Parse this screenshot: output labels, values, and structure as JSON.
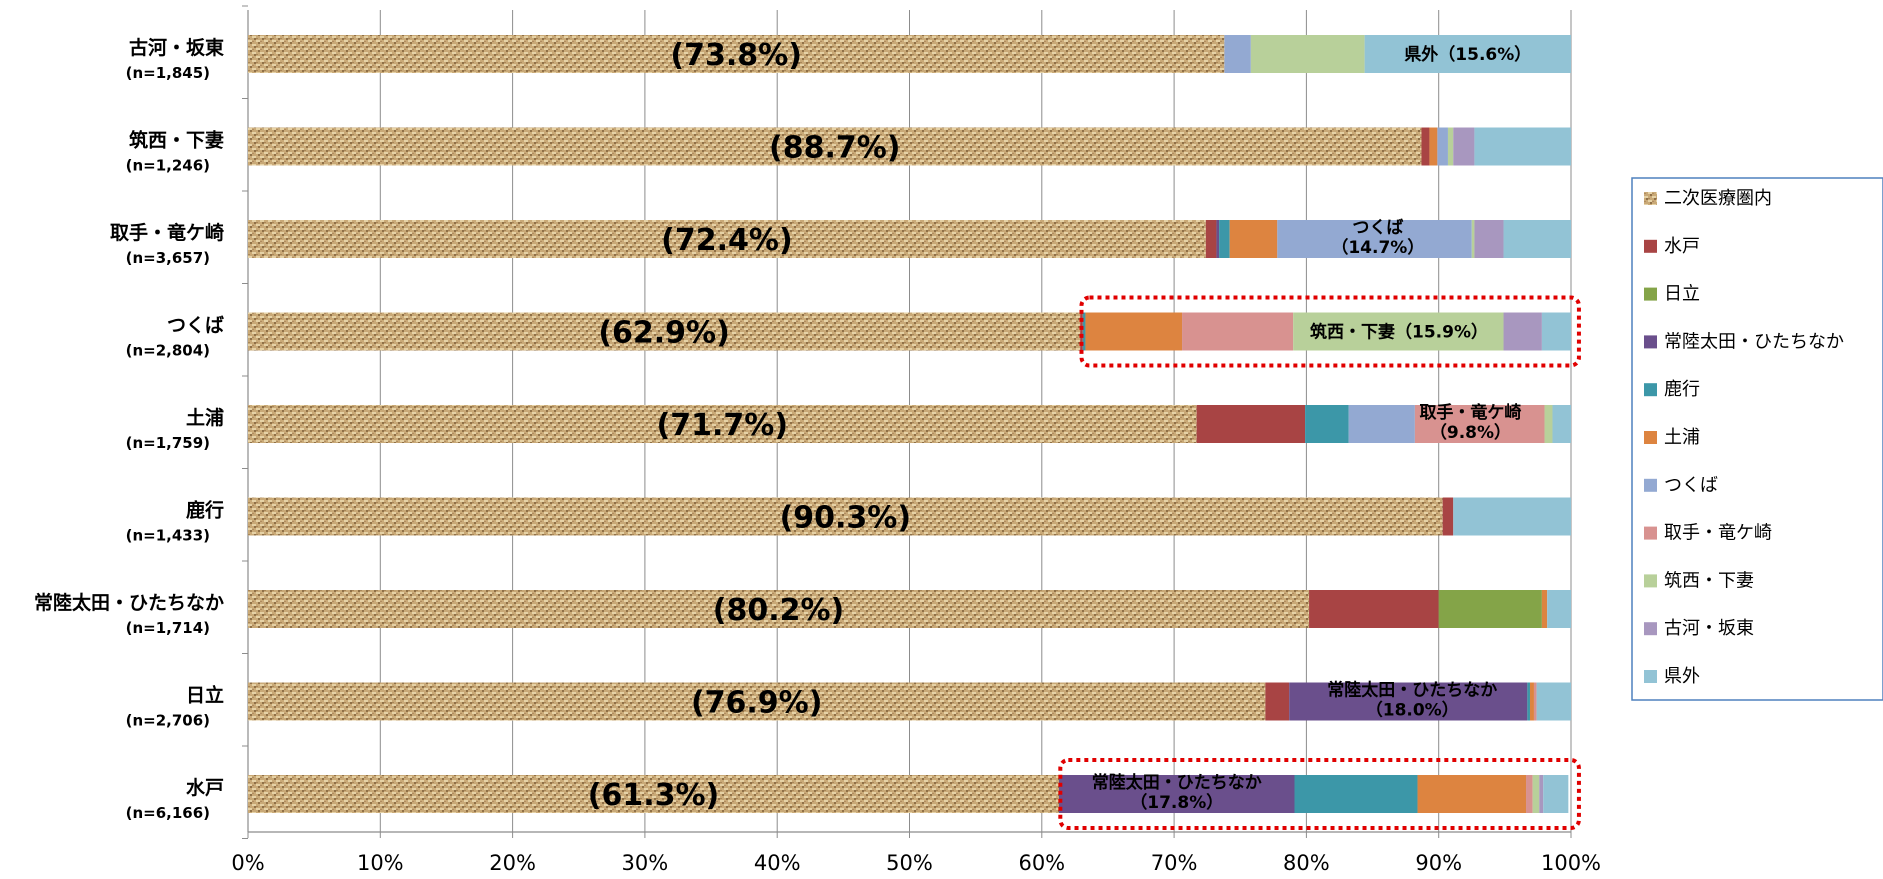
{
  "chart_data": {
    "type": "bar",
    "orientation": "horizontal",
    "stacked": true,
    "percent": true,
    "xlim": [
      0,
      100
    ],
    "xticks": [
      "0%",
      "10%",
      "20%",
      "30%",
      "40%",
      "50%",
      "60%",
      "70%",
      "80%",
      "90%",
      "100%"
    ],
    "grid": "vertical",
    "legend_position": "right",
    "categories": [
      {
        "name": "古河・坂東",
        "n": "(n=1,845)",
        "label": "(73.8%)"
      },
      {
        "name": "筑西・下妻",
        "n": "(n=1,246)",
        "label": "(88.7%)"
      },
      {
        "name": "取手・竜ケ崎",
        "n": "(n=3,657)",
        "label": "(72.4%)"
      },
      {
        "name": "つくば",
        "n": "(n=2,804)",
        "label": "(62.9%)"
      },
      {
        "name": "土浦",
        "n": "(n=1,759)",
        "label": "(71.7%)"
      },
      {
        "name": "鹿行",
        "n": "(n=1,433)",
        "label": "(90.3%)"
      },
      {
        "name": "常陸太田・ひたちなか",
        "n": "(n=1,714)",
        "label": "(80.2%)"
      },
      {
        "name": "日立",
        "n": "(n=2,706)",
        "label": "(76.9%)"
      },
      {
        "name": "水戸",
        "n": "(n=6,166)",
        "label": "(61.3%)"
      }
    ],
    "series": [
      {
        "name": "二次医療圏内",
        "color": "#c8a872",
        "pattern": "woven",
        "values": [
          73.8,
          88.7,
          72.4,
          62.9,
          71.7,
          90.3,
          80.2,
          76.9,
          61.3
        ]
      },
      {
        "name": "水戸",
        "color": "#a84444",
        "values": [
          0,
          0.6,
          0.8,
          0.2,
          8.2,
          0.8,
          9.8,
          1.8,
          0
        ]
      },
      {
        "name": "日立",
        "color": "#84a448",
        "values": [
          0,
          0,
          0,
          0,
          0,
          0,
          7.8,
          0,
          0
        ]
      },
      {
        "name": "常陸太田・ひたちなか",
        "color": "#6a4f8c",
        "values": [
          0,
          0,
          0.2,
          0,
          0,
          0,
          0,
          18.0,
          17.8
        ]
      },
      {
        "name": "鹿行",
        "color": "#3c97a8",
        "values": [
          0,
          0,
          0.8,
          0.2,
          3.3,
          0,
          0,
          0.2,
          9.3
        ]
      },
      {
        "name": "土浦",
        "color": "#dd8440",
        "values": [
          0,
          0.6,
          3.6,
          7.3,
          0,
          0,
          0.4,
          0.3,
          8.2
        ]
      },
      {
        "name": "つくば",
        "color": "#93a9d2",
        "values": [
          2.0,
          0.8,
          14.7,
          0,
          5.0,
          0,
          0,
          0,
          0
        ]
      },
      {
        "name": "取手・竜ケ崎",
        "color": "#d89290",
        "values": [
          0,
          0,
          0,
          8.4,
          9.8,
          0,
          0,
          0.2,
          0.5
        ]
      },
      {
        "name": "筑西・下妻",
        "color": "#b8d09a",
        "values": [
          8.6,
          0.4,
          0.2,
          15.9,
          0.6,
          0,
          0,
          0,
          0.5
        ]
      },
      {
        "name": "古河・坂東",
        "color": "#a897bf",
        "values": [
          0,
          1.6,
          2.2,
          2.9,
          0,
          0,
          0,
          0,
          0.3
        ]
      },
      {
        "name": "県外",
        "color": "#92c3d5",
        "values": [
          15.6,
          7.3,
          5.1,
          2.2,
          1.4,
          8.9,
          1.8,
          2.6,
          1.9
        ]
      }
    ],
    "annotations": [
      {
        "cat": 0,
        "lines": [
          "県外（15.6%）"
        ],
        "cx": 92.2
      },
      {
        "cat": 2,
        "lines": [
          "つくば",
          "（14.7%）"
        ],
        "cx": 85.4
      },
      {
        "cat": 3,
        "lines": [
          "筑西・下妻（15.9%）"
        ],
        "cx": 87.0
      },
      {
        "cat": 4,
        "lines": [
          "取手・竜ケ崎",
          "（9.8%）"
        ],
        "cx": 92.4
      },
      {
        "cat": 7,
        "lines": [
          "常陸太田・ひたちなか",
          "（18.0%）"
        ],
        "cx": 88.0
      },
      {
        "cat": 8,
        "lines": [
          "常陸太田・ひたちなか",
          "（17.8%）"
        ],
        "cx": 70.2
      }
    ],
    "highlight_boxes": [
      {
        "cat": 3,
        "from": 63.0,
        "to": 100.6
      },
      {
        "cat": 8,
        "from": 61.4,
        "to": 100.6
      }
    ]
  }
}
